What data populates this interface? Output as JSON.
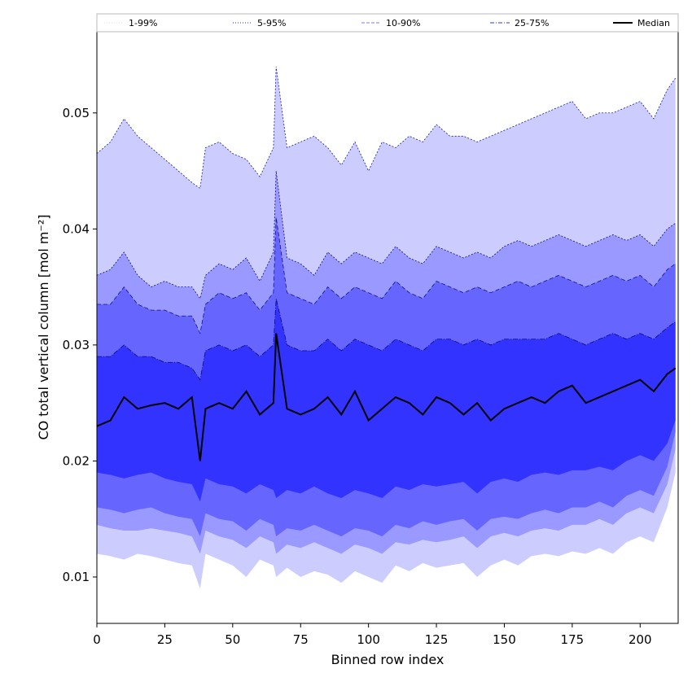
{
  "chart_data": {
    "type": "area",
    "title": "",
    "xlabel": "Binned row index",
    "ylabel": "CO total vertical column [mol m⁻²]",
    "xlim": [
      0,
      214
    ],
    "ylim": [
      0.006,
      0.057
    ],
    "x_ticks": [
      0,
      25,
      50,
      75,
      100,
      125,
      150,
      175,
      200
    ],
    "y_ticks": [
      0.01,
      0.02,
      0.03,
      0.04,
      0.05
    ],
    "x_tick_labels": [
      "0",
      "25",
      "50",
      "75",
      "100",
      "125",
      "150",
      "175",
      "200"
    ],
    "y_tick_labels": [
      "0.01",
      "0.02",
      "0.03",
      "0.04",
      "0.05"
    ],
    "grid": false,
    "legend_position": "top, spanning full width",
    "legend": [
      {
        "label": "1-99%",
        "color": "#d8d8f8",
        "style": "dotted"
      },
      {
        "label": "5-95%",
        "color": "#2222cc",
        "style": "dotted"
      },
      {
        "label": "10-90%",
        "color": "#7777ff",
        "style": "dashed"
      },
      {
        "label": "25-75%",
        "color": "#3333ee",
        "style": "dashdot"
      },
      {
        "label": "Median",
        "color": "#000000",
        "style": "solid"
      }
    ],
    "band_colors": {
      "p1_99": "#ccccff",
      "p5_95": "#9999ff",
      "p10_90": "#6666ff",
      "p25_75": "#3333ff",
      "median": "#000000"
    },
    "x": [
      0,
      5,
      10,
      15,
      20,
      25,
      30,
      35,
      38,
      40,
      45,
      50,
      55,
      60,
      65,
      66,
      70,
      75,
      80,
      85,
      90,
      95,
      100,
      105,
      110,
      115,
      120,
      125,
      130,
      135,
      140,
      145,
      150,
      155,
      160,
      165,
      170,
      175,
      180,
      185,
      190,
      195,
      200,
      205,
      210,
      213
    ],
    "series": [
      {
        "name": "1-99%",
        "upper": [
          0.0465,
          0.0475,
          0.0495,
          0.048,
          0.047,
          0.046,
          0.045,
          0.044,
          0.0435,
          0.047,
          0.0475,
          0.0465,
          0.046,
          0.0445,
          0.047,
          0.054,
          0.047,
          0.0475,
          0.048,
          0.047,
          0.0455,
          0.0475,
          0.045,
          0.0475,
          0.047,
          0.048,
          0.0475,
          0.049,
          0.048,
          0.048,
          0.0475,
          0.048,
          0.0485,
          0.049,
          0.0495,
          0.05,
          0.0505,
          0.051,
          0.0495,
          0.05,
          0.05,
          0.0505,
          0.051,
          0.0495,
          0.052,
          0.053
        ],
        "lower": [
          0.012,
          0.0118,
          0.0115,
          0.012,
          0.0118,
          0.0115,
          0.0112,
          0.011,
          0.009,
          0.012,
          0.0115,
          0.011,
          0.01,
          0.0115,
          0.011,
          0.01,
          0.0108,
          0.01,
          0.0105,
          0.0102,
          0.0095,
          0.0105,
          0.01,
          0.0095,
          0.011,
          0.0105,
          0.0112,
          0.0108,
          0.011,
          0.0112,
          0.01,
          0.011,
          0.0115,
          0.011,
          0.0118,
          0.012,
          0.0118,
          0.0122,
          0.012,
          0.0125,
          0.012,
          0.013,
          0.0135,
          0.013,
          0.016,
          0.019
        ]
      },
      {
        "name": "5-95%",
        "upper": [
          0.036,
          0.0365,
          0.038,
          0.036,
          0.035,
          0.0355,
          0.035,
          0.035,
          0.034,
          0.036,
          0.037,
          0.0365,
          0.0375,
          0.0355,
          0.038,
          0.045,
          0.0375,
          0.037,
          0.036,
          0.038,
          0.037,
          0.038,
          0.0375,
          0.037,
          0.0385,
          0.0375,
          0.037,
          0.0385,
          0.038,
          0.0375,
          0.038,
          0.0375,
          0.0385,
          0.039,
          0.0385,
          0.039,
          0.0395,
          0.039,
          0.0385,
          0.039,
          0.0395,
          0.039,
          0.0395,
          0.0385,
          0.04,
          0.0405
        ],
        "lower": [
          0.0145,
          0.0142,
          0.014,
          0.014,
          0.0142,
          0.014,
          0.0138,
          0.0135,
          0.012,
          0.014,
          0.0135,
          0.0132,
          0.0125,
          0.0135,
          0.013,
          0.012,
          0.0128,
          0.0125,
          0.013,
          0.0125,
          0.012,
          0.0128,
          0.0125,
          0.012,
          0.013,
          0.0128,
          0.0132,
          0.013,
          0.0132,
          0.0135,
          0.0125,
          0.0135,
          0.0138,
          0.0135,
          0.014,
          0.0142,
          0.014,
          0.0145,
          0.0145,
          0.015,
          0.0145,
          0.0155,
          0.016,
          0.0155,
          0.018,
          0.021
        ]
      },
      {
        "name": "10-90%",
        "upper": [
          0.0335,
          0.0335,
          0.035,
          0.0335,
          0.033,
          0.033,
          0.0325,
          0.0325,
          0.031,
          0.0335,
          0.0345,
          0.034,
          0.0345,
          0.033,
          0.0345,
          0.041,
          0.0345,
          0.034,
          0.0335,
          0.035,
          0.034,
          0.035,
          0.0345,
          0.034,
          0.0355,
          0.0345,
          0.034,
          0.0355,
          0.035,
          0.0345,
          0.035,
          0.0345,
          0.035,
          0.0355,
          0.035,
          0.0355,
          0.036,
          0.0355,
          0.035,
          0.0355,
          0.036,
          0.0355,
          0.036,
          0.035,
          0.0365,
          0.037
        ],
        "lower": [
          0.016,
          0.0158,
          0.0155,
          0.0158,
          0.016,
          0.0155,
          0.0152,
          0.015,
          0.0135,
          0.0155,
          0.015,
          0.0148,
          0.014,
          0.015,
          0.0145,
          0.0135,
          0.0142,
          0.014,
          0.0145,
          0.014,
          0.0135,
          0.0142,
          0.014,
          0.0135,
          0.0145,
          0.0142,
          0.0148,
          0.0145,
          0.0148,
          0.015,
          0.014,
          0.015,
          0.0152,
          0.015,
          0.0155,
          0.0158,
          0.0155,
          0.016,
          0.016,
          0.0165,
          0.016,
          0.017,
          0.0175,
          0.017,
          0.0195,
          0.0225
        ]
      },
      {
        "name": "25-75%",
        "upper": [
          0.029,
          0.029,
          0.03,
          0.029,
          0.029,
          0.0285,
          0.0285,
          0.028,
          0.027,
          0.0295,
          0.03,
          0.0295,
          0.03,
          0.029,
          0.03,
          0.034,
          0.03,
          0.0295,
          0.0295,
          0.0305,
          0.0295,
          0.0305,
          0.03,
          0.0295,
          0.0305,
          0.03,
          0.0295,
          0.0305,
          0.0305,
          0.03,
          0.0305,
          0.03,
          0.0305,
          0.0305,
          0.0305,
          0.0305,
          0.031,
          0.0305,
          0.03,
          0.0305,
          0.031,
          0.0305,
          0.031,
          0.0305,
          0.0315,
          0.032
        ],
        "lower": [
          0.019,
          0.0188,
          0.0185,
          0.0188,
          0.019,
          0.0185,
          0.0182,
          0.018,
          0.0165,
          0.0185,
          0.018,
          0.0178,
          0.0172,
          0.018,
          0.0175,
          0.0168,
          0.0175,
          0.0172,
          0.0178,
          0.0172,
          0.0168,
          0.0175,
          0.0172,
          0.0168,
          0.0178,
          0.0175,
          0.018,
          0.0178,
          0.018,
          0.0182,
          0.0172,
          0.0182,
          0.0185,
          0.0182,
          0.0188,
          0.019,
          0.0188,
          0.0192,
          0.0192,
          0.0195,
          0.0192,
          0.02,
          0.0205,
          0.02,
          0.0215,
          0.0235
        ]
      },
      {
        "name": "Median",
        "values": [
          0.023,
          0.0235,
          0.0255,
          0.0245,
          0.0248,
          0.025,
          0.0245,
          0.0255,
          0.02,
          0.0245,
          0.025,
          0.0245,
          0.026,
          0.024,
          0.025,
          0.031,
          0.0245,
          0.024,
          0.0245,
          0.0255,
          0.024,
          0.026,
          0.0235,
          0.0245,
          0.0255,
          0.025,
          0.024,
          0.0255,
          0.025,
          0.024,
          0.025,
          0.0235,
          0.0245,
          0.025,
          0.0255,
          0.025,
          0.026,
          0.0265,
          0.025,
          0.0255,
          0.026,
          0.0265,
          0.027,
          0.026,
          0.0275,
          0.028
        ]
      }
    ]
  }
}
